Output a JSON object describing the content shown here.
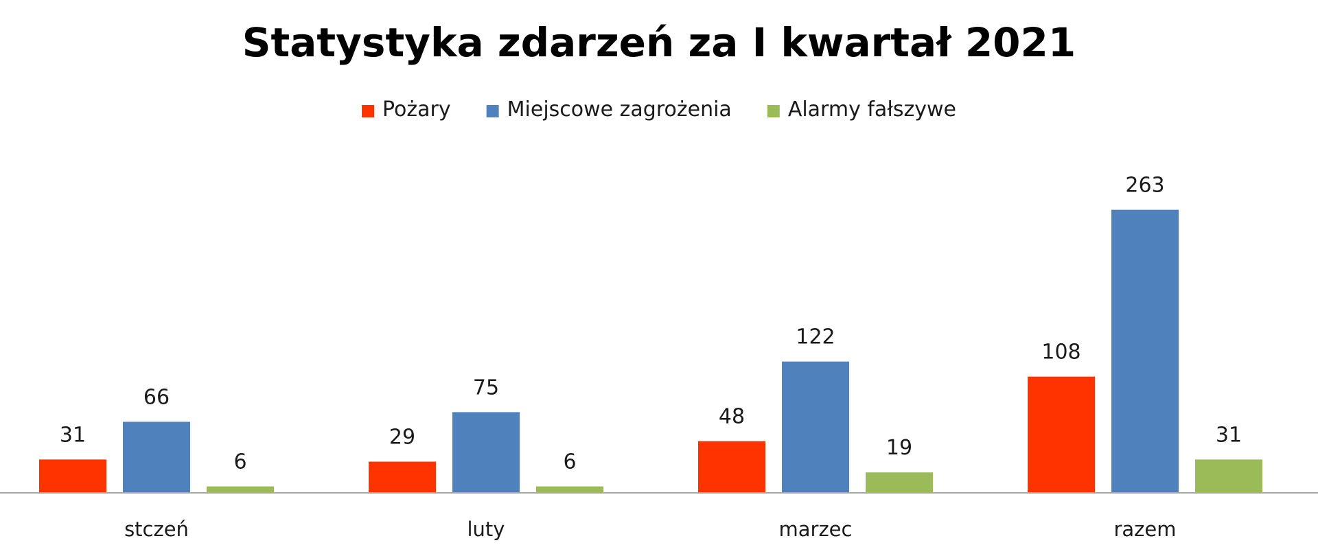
{
  "chart_data": {
    "type": "bar",
    "title": "Statystyka zdarzeń za I kwartał 2021",
    "xlabel": "",
    "ylabel": "",
    "categories": [
      "stczeń",
      "luty",
      "marzec",
      "razem"
    ],
    "series": [
      {
        "name": "Pożary",
        "color": "#ff3300",
        "values": [
          31,
          29,
          48,
          108
        ]
      },
      {
        "name": "Miejscowe zagrożenia",
        "color": "#4f81bd",
        "values": [
          66,
          75,
          122,
          263
        ]
      },
      {
        "name": "Alarmy fałszywe",
        "color": "#9bbb59",
        "values": [
          6,
          6,
          19,
          31
        ]
      }
    ],
    "ylim": [
      0,
      300
    ],
    "grid": false,
    "legend_position": "top",
    "data_labels": true,
    "axis_color": "#a6a6a6"
  }
}
